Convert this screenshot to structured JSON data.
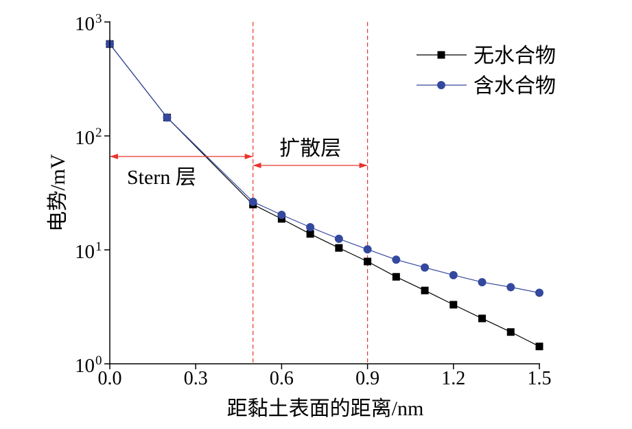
{
  "chart_data": {
    "type": "line",
    "xlabel": "距黏土表面的距离/nm",
    "ylabel": "电势/mV",
    "xlim": [
      0,
      1.5
    ],
    "ylim": [
      1,
      1000
    ],
    "yscale": "log",
    "grid": false,
    "legend_position": "top-right",
    "xticks": [
      {
        "value": 0,
        "label": "0.0"
      },
      {
        "value": 0.3,
        "label": "0.3"
      },
      {
        "value": 0.6,
        "label": "0.6"
      },
      {
        "value": 0.9,
        "label": "0.9"
      },
      {
        "value": 1.2,
        "label": "1.2"
      },
      {
        "value": 1.5,
        "label": "1.5"
      }
    ],
    "yticks": [
      {
        "value": 1,
        "base": "10",
        "exp": "0"
      },
      {
        "value": 10,
        "base": "10",
        "exp": "1"
      },
      {
        "value": 100,
        "base": "10",
        "exp": "2"
      },
      {
        "value": 1000,
        "base": "10",
        "exp": "3"
      }
    ],
    "series": [
      {
        "name": "无水合物",
        "marker": "square",
        "color": "#000000",
        "x": [
          0,
          0.2,
          0.5,
          0.6,
          0.7,
          0.8,
          0.9,
          1.0,
          1.1,
          1.2,
          1.3,
          1.4,
          1.5
        ],
        "y": [
          640,
          145,
          25,
          18.7,
          13.8,
          10.4,
          7.9,
          5.8,
          4.4,
          3.3,
          2.5,
          1.9,
          1.42
        ]
      },
      {
        "name": "含水合物",
        "marker": "circle",
        "color": "#34489e",
        "x": [
          0,
          0.2,
          0.5,
          0.6,
          0.7,
          0.8,
          0.9,
          1.0,
          1.1,
          1.2,
          1.3,
          1.4,
          1.5
        ],
        "y": [
          640,
          145,
          26.4,
          20.3,
          15.8,
          12.5,
          10.1,
          8.2,
          7.0,
          6.0,
          5.2,
          4.7,
          4.2
        ]
      }
    ],
    "vlines": [
      0.5,
      0.9
    ],
    "annotation_color": "#e8352c",
    "annotations": [
      {
        "text": "Stern 层",
        "x_range": [
          0,
          0.5
        ]
      },
      {
        "text": "扩散层",
        "x_range": [
          0.5,
          0.9
        ]
      }
    ]
  }
}
